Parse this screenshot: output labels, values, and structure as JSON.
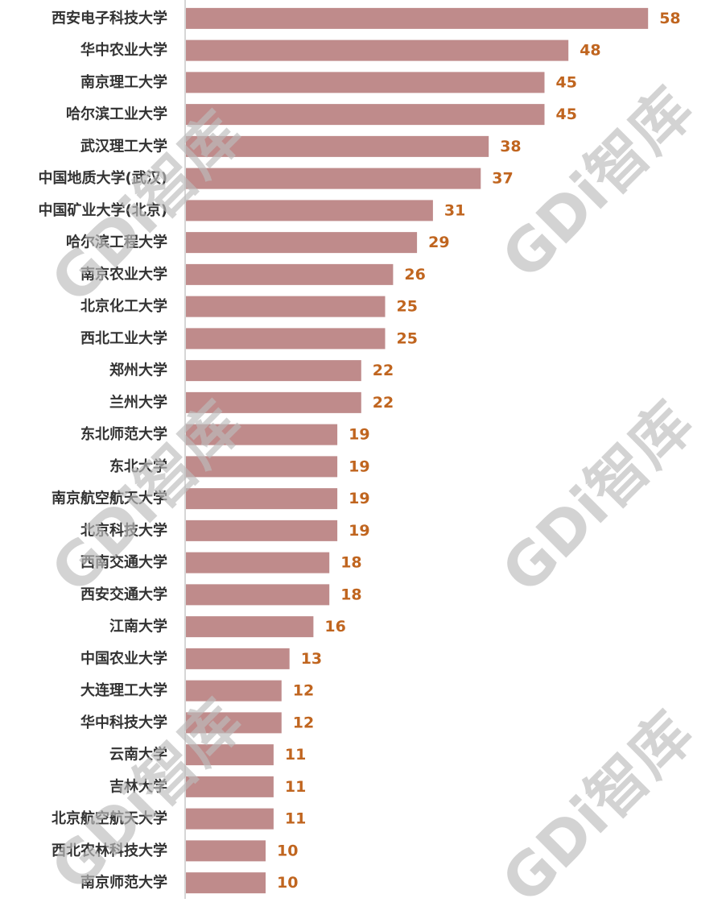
{
  "watermark": "GDi智库",
  "colors": {
    "bar": "#bf8b8b",
    "value_label": "#c0651f",
    "axis": "#c8c8c8"
  },
  "chart_data": {
    "type": "bar",
    "orientation": "horizontal",
    "categories": [
      "西安电子科技大学",
      "华中农业大学",
      "南京理工大学",
      "哈尔滨工业大学",
      "武汉理工大学",
      "中国地质大学(武汉)",
      "中国矿业大学(北京)",
      "哈尔滨工程大学",
      "南京农业大学",
      "北京化工大学",
      "西北工业大学",
      "郑州大学",
      "兰州大学",
      "东北师范大学",
      "东北大学",
      "南京航空航天大学",
      "北京科技大学",
      "西南交通大学",
      "西安交通大学",
      "江南大学",
      "中国农业大学",
      "大连理工大学",
      "华中科技大学",
      "云南大学",
      "吉林大学",
      "北京航空航天大学",
      "西北农林科技大学",
      "南京师范大学"
    ],
    "values": [
      58,
      48,
      45,
      45,
      38,
      37,
      31,
      29,
      26,
      25,
      25,
      22,
      22,
      19,
      19,
      19,
      19,
      18,
      18,
      16,
      13,
      12,
      12,
      11,
      11,
      11,
      10,
      10
    ],
    "data_labels": true,
    "grid": false,
    "legend": false
  }
}
